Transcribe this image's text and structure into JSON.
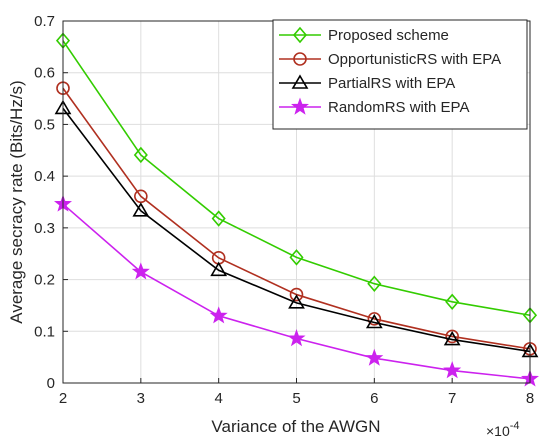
{
  "chart_data": {
    "type": "line",
    "title": "",
    "xlabel": "Variance of the AWGN",
    "ylabel": "Average secracy rate (Bits/Hz/s)",
    "x_multiplier": "×10",
    "x_multiplier_exp": "-4",
    "x": [
      2,
      3,
      4,
      5,
      6,
      7,
      8
    ],
    "xlim": [
      2,
      8
    ],
    "ylim": [
      0,
      0.7
    ],
    "xticks": [
      "2",
      "3",
      "4",
      "5",
      "6",
      "7",
      "8"
    ],
    "yticks": [
      "0",
      "0.1",
      "0.2",
      "0.3",
      "0.4",
      "0.5",
      "0.6",
      "0.7"
    ],
    "grid": true,
    "legend_position": "top-right",
    "series": [
      {
        "name": "Proposed scheme",
        "color": "#33cc00",
        "marker": "diamond",
        "values": [
          0.662,
          0.441,
          0.318,
          0.243,
          0.192,
          0.157,
          0.131
        ]
      },
      {
        "name": "OpportunisticRS with EPA",
        "color": "#b03020",
        "marker": "circle",
        "values": [
          0.57,
          0.361,
          0.242,
          0.171,
          0.124,
          0.09,
          0.066
        ]
      },
      {
        "name": "PartialRS with EPA",
        "color": "#000000",
        "marker": "triangle",
        "values": [
          0.531,
          0.333,
          0.218,
          0.155,
          0.117,
          0.084,
          0.061
        ]
      },
      {
        "name": "RandomRS with EPA",
        "color": "#cc22ee",
        "marker": "star",
        "values": [
          0.346,
          0.215,
          0.13,
          0.086,
          0.048,
          0.024,
          0.008
        ]
      }
    ]
  }
}
